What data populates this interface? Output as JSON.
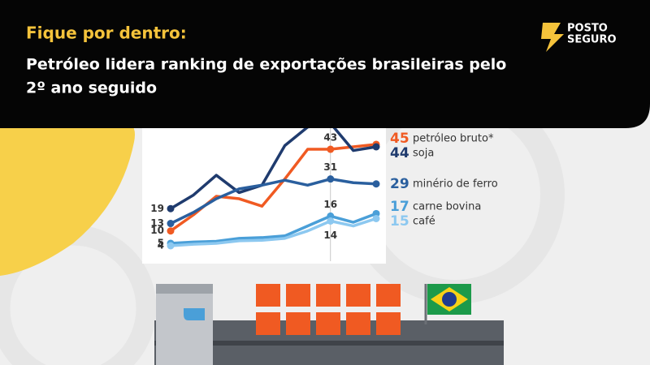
{
  "header": {
    "kicker": "Fique por dentro:",
    "title_line1": "Petróleo lidera ranking de exportações brasileiras pelo",
    "title_line2": "2º ano seguido"
  },
  "logo": {
    "line1": "POSTO",
    "line2": "SEGURO"
  },
  "chart_data": {
    "type": "line",
    "categories": [
      null,
      null,
      null,
      null,
      null,
      null,
      null,
      null,
      null,
      null
    ],
    "ylim": [
      0,
      56
    ],
    "series": [
      {
        "name": "petróleo bruto*",
        "color": "#f05a22",
        "values": [
          10,
          16.5,
          24,
          23,
          20,
          31,
          43,
          43,
          44,
          45
        ]
      },
      {
        "name": "soja",
        "color": "#1f3b6e",
        "values": [
          19,
          24.5,
          32.5,
          25.5,
          28.5,
          44.5,
          52,
          53.5,
          42.5,
          44
        ]
      },
      {
        "name": "minério de ferro",
        "color": "#2a5f9e",
        "values": [
          13,
          17.5,
          23,
          27,
          28.5,
          30.5,
          28.5,
          31,
          29.5,
          29
        ]
      },
      {
        "name": "carne bovina",
        "color": "#4a9fd8",
        "values": [
          5,
          5.5,
          5.8,
          7,
          7.3,
          8,
          12,
          16,
          13.5,
          17
        ]
      },
      {
        "name": "café",
        "color": "#8cc8f0",
        "values": [
          4,
          4.6,
          5,
          6,
          6.2,
          7,
          10,
          14,
          12,
          15
        ]
      }
    ]
  }
}
